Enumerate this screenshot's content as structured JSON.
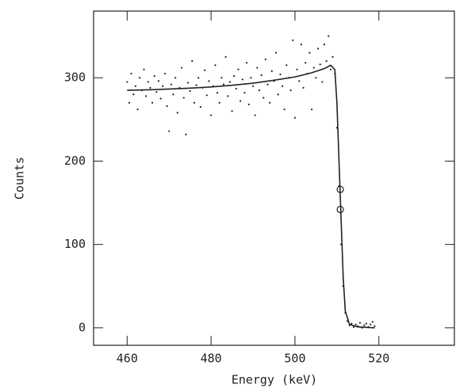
{
  "chart_data": {
    "type": "scatter",
    "xlabel": "Energy (keV)",
    "ylabel": "Counts",
    "xlim": [
      452,
      538
    ],
    "ylim": [
      -21,
      380
    ],
    "xticks": [
      460,
      480,
      500,
      520
    ],
    "yticks": [
      0,
      100,
      200,
      300
    ],
    "color": "#222222",
    "series": [
      {
        "style": "points",
        "x": [
          460,
          460.5,
          461,
          461.5,
          462,
          462.5,
          463,
          463.5,
          464,
          464.5,
          465,
          465.5,
          466,
          466.5,
          467,
          467.5,
          468,
          468.5,
          469,
          469.5,
          470,
          470.5,
          471,
          471.5,
          472,
          472.5,
          473,
          473.5,
          474,
          474.5,
          475,
          475.5,
          476,
          476.5,
          477,
          477.5,
          478,
          478.5,
          479,
          479.5,
          480,
          480.5,
          481,
          481.5,
          482,
          482.5,
          483,
          483.5,
          484,
          484.5,
          485,
          485.5,
          486,
          486.5,
          487,
          487.5,
          488,
          488.5,
          489,
          489.5,
          490,
          490.5,
          491,
          491.5,
          492,
          492.5,
          493,
          493.5,
          494,
          494.5,
          495,
          495.5,
          496,
          496.5,
          497,
          497.5,
          498,
          498.5,
          499,
          499.5,
          500,
          500.5,
          501,
          501.5,
          502,
          502.5,
          503,
          503.5,
          504,
          504.5,
          505,
          505.5,
          506,
          506.5,
          507,
          507.5,
          508,
          508.5,
          509,
          509.5,
          510,
          510.5,
          511,
          511.5,
          512,
          512.5,
          513,
          513.5,
          514,
          514.5,
          515,
          515.5,
          516,
          516.5,
          517,
          517.5,
          518,
          518.5,
          519
        ],
        "values": [
          295,
          270,
          305,
          280,
          290,
          262,
          300,
          285,
          310,
          278,
          295,
          288,
          270,
          302,
          283,
          296,
          275,
          290,
          305,
          266,
          236,
          292,
          280,
          300,
          258,
          288,
          312,
          276,
          232,
          294,
          284,
          320,
          270,
          291,
          300,
          265,
          288,
          309,
          279,
          296,
          255,
          290,
          315,
          282,
          270,
          300,
          292,
          325,
          278,
          295,
          260,
          302,
          287,
          310,
          272,
          298,
          282,
          318,
          268,
          300,
          290,
          255,
          312,
          285,
          303,
          276,
          322,
          292,
          270,
          308,
          296,
          330,
          280,
          304,
          290,
          262,
          315,
          300,
          285,
          345,
          252,
          310,
          296,
          340,
          288,
          318,
          305,
          330,
          262,
          312,
          300,
          335,
          316,
          295,
          340,
          320,
          350,
          310,
          325,
          305,
          240,
          170,
          100,
          50,
          18,
          8,
          3,
          5,
          1,
          4,
          2,
          6,
          0,
          3,
          5,
          1,
          4,
          7,
          2
        ]
      },
      {
        "style": "line",
        "x": [
          460,
          465,
          470,
          475,
          480,
          485,
          490,
          495,
          500,
          504,
          507,
          508.5,
          509.5,
          510,
          510.5,
          511,
          511.5,
          512,
          513,
          515,
          519
        ],
        "values": [
          285,
          285.5,
          286.5,
          287.5,
          289,
          291,
          293.5,
          297,
          301,
          306,
          311,
          315,
          310,
          270,
          200,
          130,
          60,
          20,
          4,
          1,
          0
        ]
      },
      {
        "style": "circles",
        "x": [
          510.8,
          510.8
        ],
        "values": [
          166,
          142
        ]
      }
    ]
  }
}
